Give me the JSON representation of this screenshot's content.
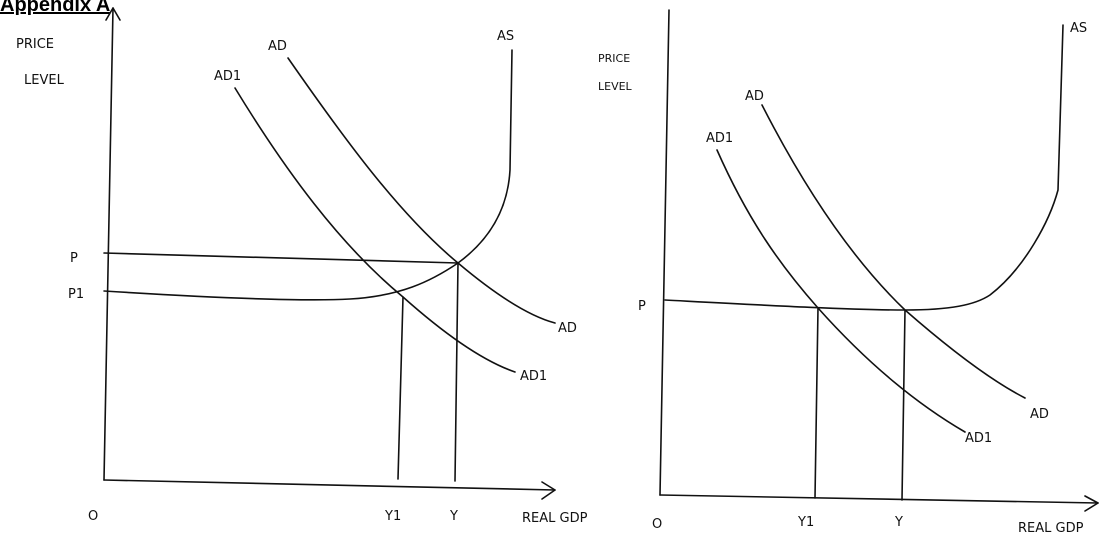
{
  "page": {
    "title": "Appendix A"
  },
  "diagrams": [
    {
      "id": "left",
      "y_axis_label_line1": "PRICE",
      "y_axis_label_line2": "LEVEL",
      "x_axis_label": "REAL GDP",
      "origin_label": "O",
      "price_labels": [
        "P",
        "P1"
      ],
      "output_labels": [
        "Y1",
        "Y"
      ],
      "curve_labels": {
        "as": "AS",
        "ad_top": "AD",
        "ad1_top": "AD1",
        "ad_end": "AD",
        "ad1_end": "AD1"
      }
    },
    {
      "id": "right",
      "y_axis_label_line1": "PRICE",
      "y_axis_label_line2": "LEVEL",
      "x_axis_label": "REAL GDP",
      "origin_label": "O",
      "price_labels": [
        "P"
      ],
      "output_labels": [
        "Y1",
        "Y"
      ],
      "curve_labels": {
        "as": "AS",
        "ad_top": "AD",
        "ad1_top": "AD1",
        "ad_end": "AD",
        "ad1_end": "AD1"
      }
    }
  ]
}
